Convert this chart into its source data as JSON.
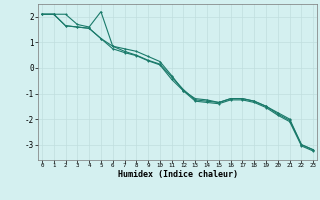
{
  "xlabel": "Humidex (Indice chaleur)",
  "bg_color": "#d4f0f0",
  "grid_color": "#c0dede",
  "line_color": "#1a7a6a",
  "x_values": [
    0,
    1,
    2,
    3,
    4,
    5,
    6,
    7,
    8,
    9,
    10,
    11,
    12,
    13,
    14,
    15,
    16,
    17,
    18,
    19,
    20,
    21,
    22,
    23
  ],
  "series1": [
    2.1,
    2.1,
    2.1,
    1.7,
    1.6,
    2.2,
    0.85,
    0.75,
    0.65,
    0.45,
    0.25,
    -0.3,
    -0.9,
    -1.2,
    -1.25,
    -1.35,
    -1.2,
    -1.2,
    -1.3,
    -1.5,
    -1.8,
    -2.05,
    -3.0,
    -3.2
  ],
  "series2": [
    2.1,
    2.1,
    1.65,
    1.6,
    1.55,
    1.15,
    0.85,
    0.65,
    0.5,
    0.3,
    0.15,
    -0.35,
    -0.85,
    -1.25,
    -1.3,
    -1.35,
    -1.2,
    -1.2,
    -1.3,
    -1.5,
    -1.75,
    -2.0,
    -3.0,
    -3.2
  ],
  "series3": [
    2.1,
    2.1,
    1.65,
    1.6,
    1.55,
    1.15,
    0.75,
    0.6,
    0.48,
    0.28,
    0.12,
    -0.45,
    -0.9,
    -1.3,
    -1.35,
    -1.4,
    -1.25,
    -1.25,
    -1.35,
    -1.55,
    -1.85,
    -2.1,
    -3.05,
    -3.25
  ],
  "ylim": [
    -3.6,
    2.5
  ],
  "xlim": [
    -0.3,
    23.3
  ],
  "yticks": [
    -3,
    -2,
    -1,
    0,
    1,
    2
  ],
  "xticks": [
    0,
    1,
    2,
    3,
    4,
    5,
    6,
    7,
    8,
    9,
    10,
    11,
    12,
    13,
    14,
    15,
    16,
    17,
    18,
    19,
    20,
    21,
    22,
    23
  ]
}
